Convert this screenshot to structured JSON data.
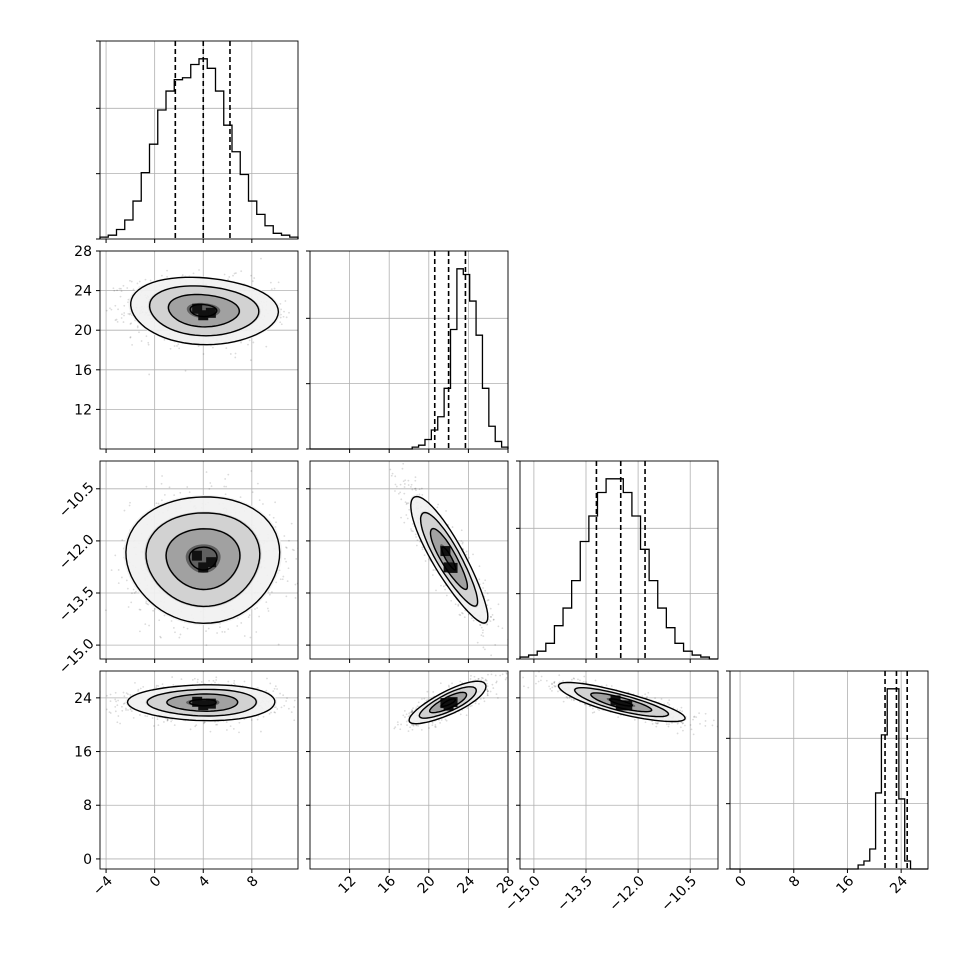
{
  "chart_data": {
    "type": "corner",
    "params": [
      {
        "range": [
          -4.5,
          11.8
        ],
        "ticks": [
          -4,
          0,
          4,
          8
        ],
        "tick_labels": [
          "−4",
          "0",
          "4",
          "8"
        ],
        "quantiles": [
          1.7,
          4.0,
          6.2
        ]
      },
      {
        "range": [
          8.0,
          28.0
        ],
        "ticks": [
          12,
          16,
          20,
          24,
          28
        ],
        "tick_labels": [
          "12",
          "16",
          "20",
          "24",
          "28"
        ],
        "quantiles": [
          20.6,
          22.0,
          23.7
        ]
      },
      {
        "range": [
          -15.4,
          -9.7
        ],
        "ticks": [
          -15.0,
          -13.5,
          -12.0,
          -10.5
        ],
        "tick_labels": [
          "−15.0",
          "−13.5",
          "−12.0",
          "−10.5"
        ],
        "quantiles": [
          -13.2,
          -12.5,
          -11.8
        ]
      },
      {
        "range": [
          -1.5,
          28.0
        ],
        "ticks": [
          0,
          8,
          16,
          24
        ],
        "tick_labels": [
          "0",
          "8",
          "16",
          "24"
        ],
        "quantiles": [
          21.6,
          23.3,
          24.9
        ]
      }
    ],
    "histograms": [
      {
        "bins": [
          -4.5,
          11.8
        ],
        "counts": [
          1,
          2,
          5,
          10,
          20,
          35,
          50,
          68,
          78,
          84,
          85,
          92,
          95,
          90,
          78,
          60,
          46,
          34,
          20,
          13,
          7,
          3,
          2,
          1
        ]
      },
      {
        "bins": [
          8.0,
          28.0
        ],
        "counts": [
          0,
          0,
          0,
          0,
          0,
          0,
          0,
          0,
          0,
          0,
          0,
          0,
          0,
          0,
          0,
          0,
          1,
          2,
          5,
          10,
          17,
          32,
          63,
          95,
          92,
          78,
          60,
          32,
          12,
          4,
          1
        ]
      },
      {
        "bins": [
          -15.4,
          -9.7
        ],
        "counts": [
          1,
          2,
          4,
          8,
          17,
          26,
          40,
          60,
          73,
          85,
          92,
          92,
          85,
          73,
          56,
          40,
          26,
          16,
          8,
          4,
          2,
          1,
          0
        ]
      },
      {
        "bins": [
          -1.5,
          28.0
        ],
        "counts": [
          0,
          0,
          0,
          0,
          0,
          0,
          0,
          0,
          0,
          0,
          0,
          0,
          0,
          0,
          0,
          0,
          0,
          0,
          0,
          0,
          0,
          0,
          2,
          4,
          10,
          38,
          67,
          90,
          90,
          35,
          4,
          0,
          0,
          0
        ]
      }
    ],
    "pairs": [
      {
        "x": 0,
        "y": 1,
        "center": [
          4.0,
          22.0
        ],
        "sigma": [
          2.5,
          1.4
        ],
        "rho": -0.1
      },
      {
        "x": 0,
        "y": 2,
        "center": [
          4.0,
          -12.5
        ],
        "sigma": [
          2.6,
          0.75
        ],
        "rho": 0.0
      },
      {
        "x": 0,
        "y": 3,
        "center": [
          4.0,
          23.3
        ],
        "sigma": [
          2.5,
          1.1
        ],
        "rho": 0.0
      },
      {
        "x": 1,
        "y": 2,
        "center": [
          22.0,
          -12.5
        ],
        "sigma": [
          1.6,
          0.75
        ],
        "rho": -0.88
      },
      {
        "x": 1,
        "y": 3,
        "center": [
          22.0,
          23.3
        ],
        "sigma": [
          1.6,
          1.3
        ],
        "rho": 0.8
      },
      {
        "x": 2,
        "y": 3,
        "center": [
          -12.5,
          23.3
        ],
        "sigma": [
          0.75,
          1.2
        ],
        "rho": -0.82
      }
    ],
    "grid": true,
    "legend": "none"
  }
}
